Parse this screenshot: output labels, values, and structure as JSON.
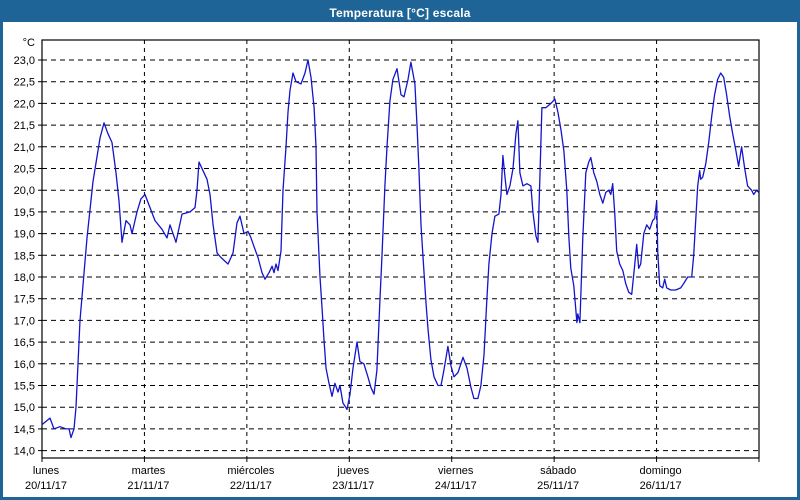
{
  "window": {
    "title": "Temperatura [°C] escala"
  },
  "colors": {
    "titlebar_bg": "#1e6496",
    "titlebar_text": "#ffffff",
    "window_border": "#1e6496",
    "background": "#ffffff",
    "plot_border": "#000000",
    "grid": "#000000",
    "line": "#1414cc",
    "label_text": "#000000"
  },
  "chart_data": {
    "type": "line",
    "title": "Temperatura [°C] escala",
    "grid": "dashed",
    "legend": "none",
    "y_axis": {
      "unit_label": "°C",
      "min": 14.0,
      "max": 23.0,
      "step": 0.5,
      "tick_labels": [
        "23,0",
        "22,5",
        "22,0",
        "21,5",
        "21,0",
        "20,5",
        "20,0",
        "19,5",
        "19,0",
        "18,5",
        "18,0",
        "17,5",
        "17,0",
        "16,5",
        "16,0",
        "15,5",
        "15,0",
        "14,5",
        "14,0"
      ]
    },
    "x_axis": {
      "days": [
        {
          "name": "lunes",
          "date": "20/11/17"
        },
        {
          "name": "martes",
          "date": "21/11/17"
        },
        {
          "name": "miércoles",
          "date": "22/11/17"
        },
        {
          "name": "jueves",
          "date": "23/11/17"
        },
        {
          "name": "viernes",
          "date": "24/11/17"
        },
        {
          "name": "sábado",
          "date": "25/11/17"
        },
        {
          "name": "domingo",
          "date": "26/11/17"
        }
      ]
    },
    "series": [
      {
        "name": "Temperatura",
        "points": [
          [
            0.0,
            14.6
          ],
          [
            0.078,
            14.75
          ],
          [
            0.117,
            14.5
          ],
          [
            0.176,
            14.55
          ],
          [
            0.234,
            14.5
          ],
          [
            0.264,
            14.5
          ],
          [
            0.283,
            14.3
          ],
          [
            0.312,
            14.5
          ],
          [
            0.332,
            15.0
          ],
          [
            0.371,
            17.0
          ],
          [
            0.439,
            18.9
          ],
          [
            0.498,
            20.2
          ],
          [
            0.566,
            21.2
          ],
          [
            0.605,
            21.55
          ],
          [
            0.644,
            21.3
          ],
          [
            0.683,
            21.1
          ],
          [
            0.722,
            20.4
          ],
          [
            0.752,
            19.75
          ],
          [
            0.781,
            18.8
          ],
          [
            0.82,
            19.3
          ],
          [
            0.859,
            19.2
          ],
          [
            0.879,
            19.0
          ],
          [
            0.927,
            19.5
          ],
          [
            0.966,
            19.8
          ],
          [
            1.006,
            19.9
          ],
          [
            1.054,
            19.6
          ],
          [
            1.103,
            19.3
          ],
          [
            1.172,
            19.1
          ],
          [
            1.22,
            18.9
          ],
          [
            1.25,
            19.2
          ],
          [
            1.308,
            18.8
          ],
          [
            1.367,
            19.45
          ],
          [
            1.445,
            19.5
          ],
          [
            1.494,
            19.6
          ],
          [
            1.513,
            20.0
          ],
          [
            1.533,
            20.65
          ],
          [
            1.572,
            20.45
          ],
          [
            1.611,
            20.25
          ],
          [
            1.64,
            19.9
          ],
          [
            1.67,
            19.2
          ],
          [
            1.709,
            18.55
          ],
          [
            1.748,
            18.45
          ],
          [
            1.816,
            18.3
          ],
          [
            1.865,
            18.55
          ],
          [
            1.904,
            19.25
          ],
          [
            1.933,
            19.4
          ],
          [
            1.972,
            19.0
          ],
          [
            2.011,
            19.05
          ],
          [
            2.04,
            18.9
          ],
          [
            2.07,
            18.7
          ],
          [
            2.109,
            18.45
          ],
          [
            2.148,
            18.1
          ],
          [
            2.177,
            17.95
          ],
          [
            2.216,
            18.1
          ],
          [
            2.246,
            18.25
          ],
          [
            2.265,
            18.1
          ],
          [
            2.285,
            18.3
          ],
          [
            2.304,
            18.15
          ],
          [
            2.333,
            18.6
          ],
          [
            2.353,
            20.0
          ],
          [
            2.382,
            21.0
          ],
          [
            2.402,
            21.8
          ],
          [
            2.421,
            22.3
          ],
          [
            2.45,
            22.7
          ],
          [
            2.48,
            22.5
          ],
          [
            2.529,
            22.45
          ],
          [
            2.568,
            22.7
          ],
          [
            2.597,
            23.0
          ],
          [
            2.626,
            22.6
          ],
          [
            2.656,
            21.9
          ],
          [
            2.675,
            21.0
          ],
          [
            2.685,
            19.5
          ],
          [
            2.714,
            18.0
          ],
          [
            2.734,
            17.3
          ],
          [
            2.753,
            16.55
          ],
          [
            2.773,
            15.9
          ],
          [
            2.802,
            15.55
          ],
          [
            2.831,
            15.25
          ],
          [
            2.86,
            15.55
          ],
          [
            2.89,
            15.35
          ],
          [
            2.909,
            15.5
          ],
          [
            2.938,
            15.1
          ],
          [
            2.978,
            14.95
          ],
          [
            3.007,
            15.3
          ],
          [
            3.036,
            15.9
          ],
          [
            3.075,
            16.5
          ],
          [
            3.104,
            16.05
          ],
          [
            3.143,
            16.0
          ],
          [
            3.182,
            15.7
          ],
          [
            3.212,
            15.45
          ],
          [
            3.241,
            15.3
          ],
          [
            3.27,
            15.85
          ],
          [
            3.3,
            17.5
          ],
          [
            3.319,
            18.5
          ],
          [
            3.348,
            20.1
          ],
          [
            3.368,
            21.0
          ],
          [
            3.397,
            22.05
          ],
          [
            3.426,
            22.55
          ],
          [
            3.466,
            22.8
          ],
          [
            3.505,
            22.2
          ],
          [
            3.534,
            22.15
          ],
          [
            3.573,
            22.55
          ],
          [
            3.602,
            22.95
          ],
          [
            3.641,
            22.45
          ],
          [
            3.661,
            21.5
          ],
          [
            3.68,
            20.5
          ],
          [
            3.7,
            19.2
          ],
          [
            3.719,
            18.5
          ],
          [
            3.749,
            17.4
          ],
          [
            3.768,
            16.8
          ],
          [
            3.797,
            16.1
          ],
          [
            3.827,
            15.7
          ],
          [
            3.866,
            15.5
          ],
          [
            3.895,
            15.5
          ],
          [
            3.924,
            15.85
          ],
          [
            3.963,
            16.4
          ],
          [
            3.993,
            15.95
          ],
          [
            4.022,
            15.7
          ],
          [
            4.061,
            15.8
          ],
          [
            4.11,
            16.15
          ],
          [
            4.149,
            15.9
          ],
          [
            4.188,
            15.45
          ],
          [
            4.217,
            15.2
          ],
          [
            4.256,
            15.2
          ],
          [
            4.285,
            15.5
          ],
          [
            4.315,
            16.2
          ],
          [
            4.344,
            17.5
          ],
          [
            4.363,
            18.3
          ],
          [
            4.393,
            19.0
          ],
          [
            4.422,
            19.4
          ],
          [
            4.461,
            19.45
          ],
          [
            4.481,
            19.9
          ],
          [
            4.5,
            20.8
          ],
          [
            4.52,
            20.3
          ],
          [
            4.539,
            19.9
          ],
          [
            4.568,
            20.1
          ],
          [
            4.598,
            20.5
          ],
          [
            4.627,
            21.3
          ],
          [
            4.646,
            21.6
          ],
          [
            4.666,
            20.4
          ],
          [
            4.695,
            20.1
          ],
          [
            4.734,
            20.15
          ],
          [
            4.773,
            20.1
          ],
          [
            4.793,
            19.5
          ],
          [
            4.822,
            18.95
          ],
          [
            4.841,
            18.8
          ],
          [
            4.861,
            20.3
          ],
          [
            4.88,
            21.9
          ],
          [
            4.919,
            21.9
          ],
          [
            4.968,
            22.0
          ],
          [
            5.007,
            22.1
          ],
          [
            5.037,
            21.8
          ],
          [
            5.066,
            21.4
          ],
          [
            5.095,
            20.9
          ],
          [
            5.124,
            20.0
          ],
          [
            5.144,
            18.9
          ],
          [
            5.163,
            18.2
          ],
          [
            5.192,
            17.8
          ],
          [
            5.222,
            16.95
          ],
          [
            5.231,
            17.15
          ],
          [
            5.251,
            16.95
          ],
          [
            5.28,
            18.9
          ],
          [
            5.309,
            20.4
          ],
          [
            5.338,
            20.65
          ],
          [
            5.358,
            20.75
          ],
          [
            5.387,
            20.4
          ],
          [
            5.416,
            20.2
          ],
          [
            5.446,
            19.9
          ],
          [
            5.475,
            19.7
          ],
          [
            5.504,
            19.95
          ],
          [
            5.533,
            20.0
          ],
          [
            5.553,
            19.9
          ],
          [
            5.572,
            20.15
          ],
          [
            5.592,
            19.45
          ],
          [
            5.611,
            18.6
          ],
          [
            5.64,
            18.3
          ],
          [
            5.67,
            18.15
          ],
          [
            5.699,
            17.85
          ],
          [
            5.728,
            17.65
          ],
          [
            5.757,
            17.6
          ],
          [
            5.787,
            18.3
          ],
          [
            5.806,
            18.75
          ],
          [
            5.826,
            18.2
          ],
          [
            5.845,
            18.3
          ],
          [
            5.875,
            19.0
          ],
          [
            5.904,
            19.2
          ],
          [
            5.933,
            19.1
          ],
          [
            5.962,
            19.3
          ],
          [
            5.982,
            19.35
          ],
          [
            6.001,
            19.75
          ],
          [
            6.011,
            18.6
          ],
          [
            6.031,
            17.8
          ],
          [
            6.06,
            17.75
          ],
          [
            6.079,
            17.95
          ],
          [
            6.099,
            17.75
          ],
          [
            6.138,
            17.7
          ],
          [
            6.187,
            17.7
          ],
          [
            6.236,
            17.75
          ],
          [
            6.265,
            17.85
          ],
          [
            6.304,
            18.0
          ],
          [
            6.343,
            18.0
          ],
          [
            6.362,
            18.5
          ],
          [
            6.382,
            19.3
          ],
          [
            6.402,
            20.1
          ],
          [
            6.421,
            20.45
          ],
          [
            6.431,
            20.25
          ],
          [
            6.45,
            20.3
          ],
          [
            6.48,
            20.6
          ],
          [
            6.509,
            21.1
          ],
          [
            6.538,
            21.7
          ],
          [
            6.567,
            22.2
          ],
          [
            6.596,
            22.55
          ],
          [
            6.626,
            22.7
          ],
          [
            6.655,
            22.6
          ],
          [
            6.684,
            22.2
          ],
          [
            6.714,
            21.7
          ],
          [
            6.743,
            21.3
          ],
          [
            6.772,
            20.95
          ],
          [
            6.801,
            20.55
          ],
          [
            6.83,
            21.0
          ],
          [
            6.86,
            20.5
          ],
          [
            6.889,
            20.1
          ],
          [
            6.928,
            20.0
          ],
          [
            6.948,
            19.9
          ],
          [
            6.977,
            20.0
          ],
          [
            6.997,
            19.95
          ]
        ]
      }
    ]
  }
}
